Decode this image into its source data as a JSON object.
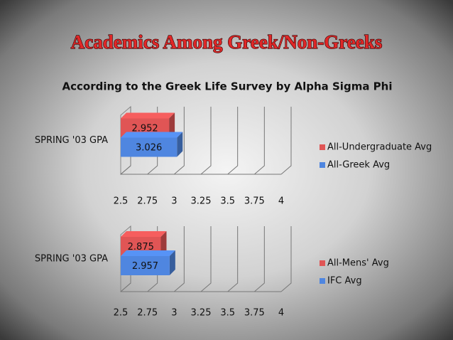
{
  "title": "Academics Among Greek/Non-Greeks",
  "subtitle": "According to the Greek Life Survey by Alpha Sigma Phi",
  "chart_data": [
    {
      "type": "bar",
      "orientation": "horizontal",
      "categories": [
        "SPRING '03 GPA"
      ],
      "series": [
        {
          "name": "All-Undergraduate Avg",
          "color": "#e05555",
          "values": [
            2.952
          ]
        },
        {
          "name": "All-Greek Avg",
          "color": "#4f86e0",
          "values": [
            3.026
          ]
        }
      ],
      "xlim": [
        2.5,
        4
      ],
      "xticks": [
        2.5,
        2.75,
        3,
        3.25,
        3.5,
        3.75,
        4
      ],
      "grid": true,
      "legend": "right"
    },
    {
      "type": "bar",
      "orientation": "horizontal",
      "categories": [
        "SPRING '03 GPA"
      ],
      "series": [
        {
          "name": "All-Mens' Avg",
          "color": "#e05555",
          "values": [
            2.875
          ]
        },
        {
          "name": "IFC Avg",
          "color": "#4f86e0",
          "values": [
            2.957
          ]
        }
      ],
      "xlim": [
        2.5,
        4
      ],
      "xticks": [
        2.5,
        2.75,
        3,
        3.25,
        3.5,
        3.75,
        4
      ],
      "grid": true,
      "legend": "right"
    }
  ]
}
